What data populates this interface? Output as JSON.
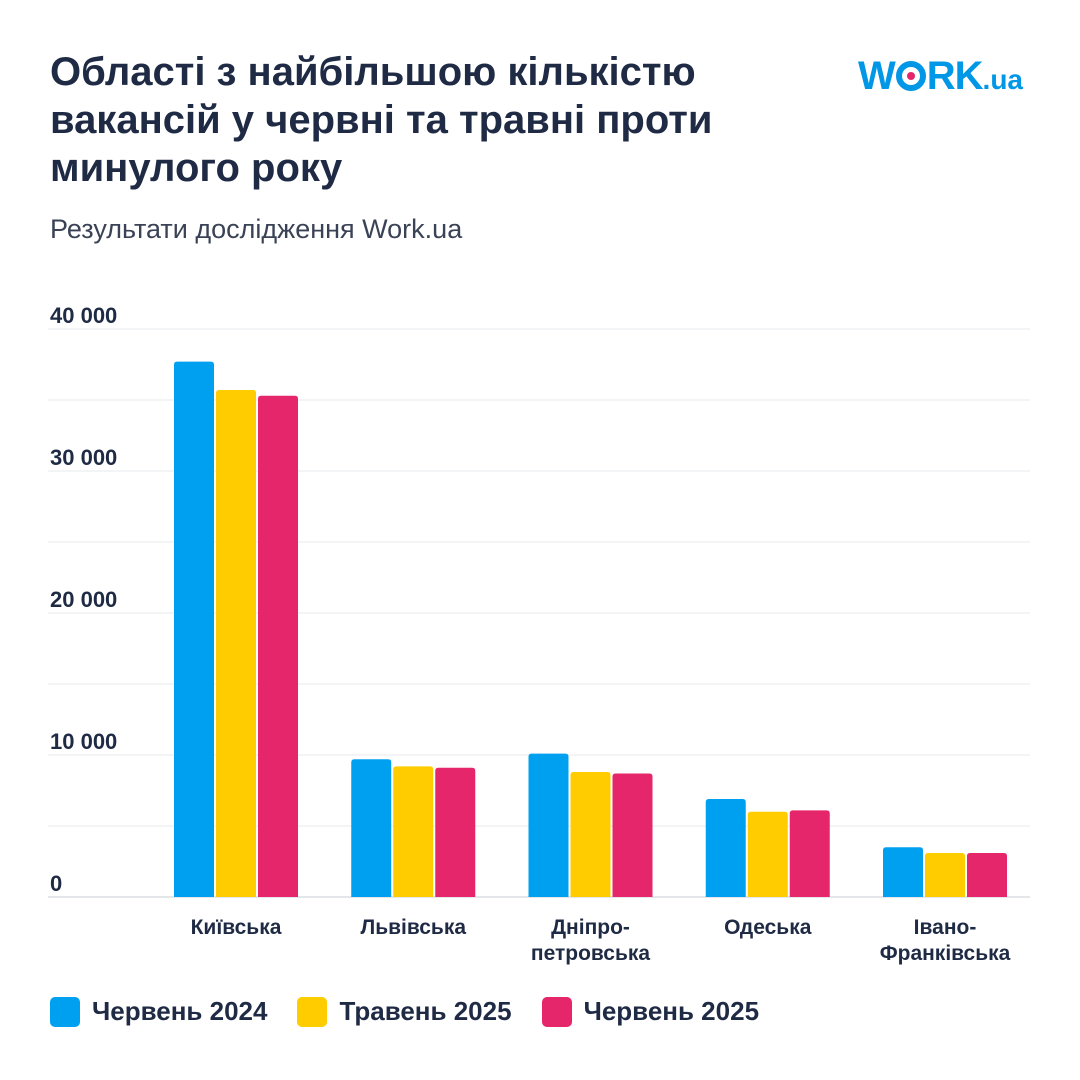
{
  "header": {
    "title": "Області з найбільшою кількістю вакансій у червні та травні проти минулого року",
    "subtitle": "Результати дослідження Work.ua",
    "logo_text": "WORK.ua"
  },
  "colors": {
    "series": [
      "#00a0f0",
      "#ffcc00",
      "#e5266a"
    ],
    "text": "#1f2a44",
    "grid": "#e6e8ec"
  },
  "chart_data": {
    "type": "bar",
    "categories": [
      [
        "Київська"
      ],
      [
        "Львівська"
      ],
      [
        "Дніпро-",
        "петровська"
      ],
      [
        "Одеська"
      ],
      [
        "Івано-",
        "Франківська"
      ]
    ],
    "series": [
      {
        "name": "Червень 2024",
        "values": [
          37700,
          9700,
          10100,
          6900,
          3500
        ]
      },
      {
        "name": "Травень 2025",
        "values": [
          35700,
          9200,
          8800,
          6000,
          3100
        ]
      },
      {
        "name": "Червень 2025",
        "values": [
          35300,
          9100,
          8700,
          6100,
          3100
        ]
      }
    ],
    "ylim": [
      0,
      40000
    ],
    "yticks": [
      "0",
      "10 000",
      "20 000",
      "30 000",
      "40 000"
    ],
    "grid": true,
    "legend": "bottom-left"
  }
}
